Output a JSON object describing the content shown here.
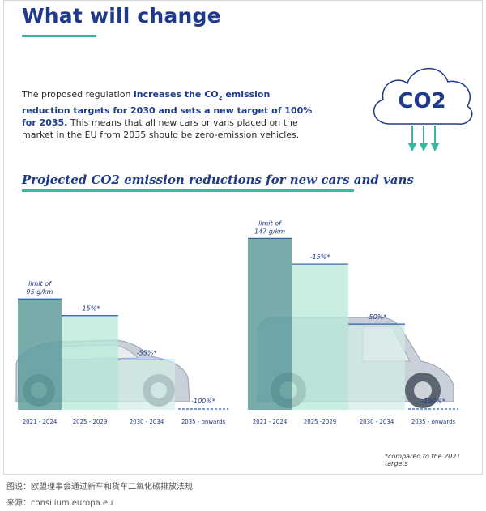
{
  "header": {
    "title": "What will change"
  },
  "intro": {
    "part1": "The proposed regulation ",
    "bold1": "increases the CO",
    "sub": "2",
    "bold2": " emission reduction targets for 2030 and sets a new target of 100% for 2035.",
    "part2": " This means that all new cars or vans placed on the market in the EU from 2035 should be zero-emission vehicles."
  },
  "cloud": {
    "label": "CO2",
    "icon": "co2-cloud-icon",
    "arrows": 3
  },
  "chart_data": [
    {
      "type": "bar",
      "title": "Projected CO2 emission reductions for new cars and vans",
      "subject": "cars",
      "categories": [
        "2021 - 2024",
        "2025 - 2029",
        "2030 - 2034",
        "2035 - onwards"
      ],
      "values": [
        95,
        80.75,
        42.75,
        0
      ],
      "labels": [
        "limit of 95 g/km",
        "-15%*",
        "-55%*",
        "-100%*"
      ],
      "ylim": [
        0,
        150
      ]
    },
    {
      "type": "bar",
      "subject": "vans",
      "categories": [
        "2021 - 2024",
        "2025 -2029",
        "2030 - 2034",
        "2035 - onwards"
      ],
      "values": [
        147,
        124.95,
        73.5,
        0
      ],
      "labels": [
        "limit of 147 g/km",
        "-15%*",
        "-50%*",
        "-100%*"
      ],
      "ylim": [
        0,
        150
      ]
    }
  ],
  "colors": {
    "navy": "#1e3a8a",
    "teal": "#39b8a0",
    "bar1": "#5f9e9c",
    "bar2": "#b6ead8",
    "bar3": "#d3ece8",
    "line": "#2a5ca8",
    "car": "#9aa7b7"
  },
  "footnote": "*compared to the 2021 targets",
  "caption": "图说：欧盟理事会通过新车和货车二氧化碳排放法规",
  "source": "来源：consilium.europa.eu"
}
